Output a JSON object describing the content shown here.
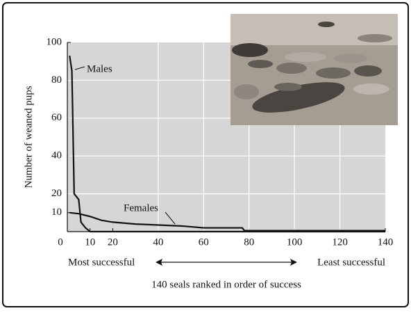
{
  "chart_data": {
    "type": "line",
    "ylabel": "Number of weaned pups",
    "xlabel": "140 seals ranked in order of success",
    "direction_labels": [
      "Most successful",
      "Least successful"
    ],
    "series": [
      {
        "name": "Males",
        "color": "#111111",
        "x": [
          1,
          2,
          3,
          5,
          6,
          8,
          10,
          140
        ],
        "values": [
          93,
          85,
          20,
          17,
          5,
          2,
          0,
          0
        ]
      },
      {
        "name": "Females",
        "color": "#111111",
        "x": [
          1,
          5,
          10,
          15,
          20,
          30,
          40,
          50,
          60,
          70,
          77,
          78,
          140
        ],
        "values": [
          10,
          9.5,
          8,
          6,
          5,
          4,
          3.5,
          3,
          2,
          2,
          2,
          0.5,
          0.5
        ]
      }
    ],
    "xlim": [
      0,
      140
    ],
    "xticks": [
      0,
      10,
      20,
      40,
      60,
      80,
      100,
      120,
      140
    ],
    "ylim": [
      0,
      100
    ],
    "yticks": [
      10,
      20,
      40,
      60,
      80,
      100
    ],
    "grid": true
  }
}
